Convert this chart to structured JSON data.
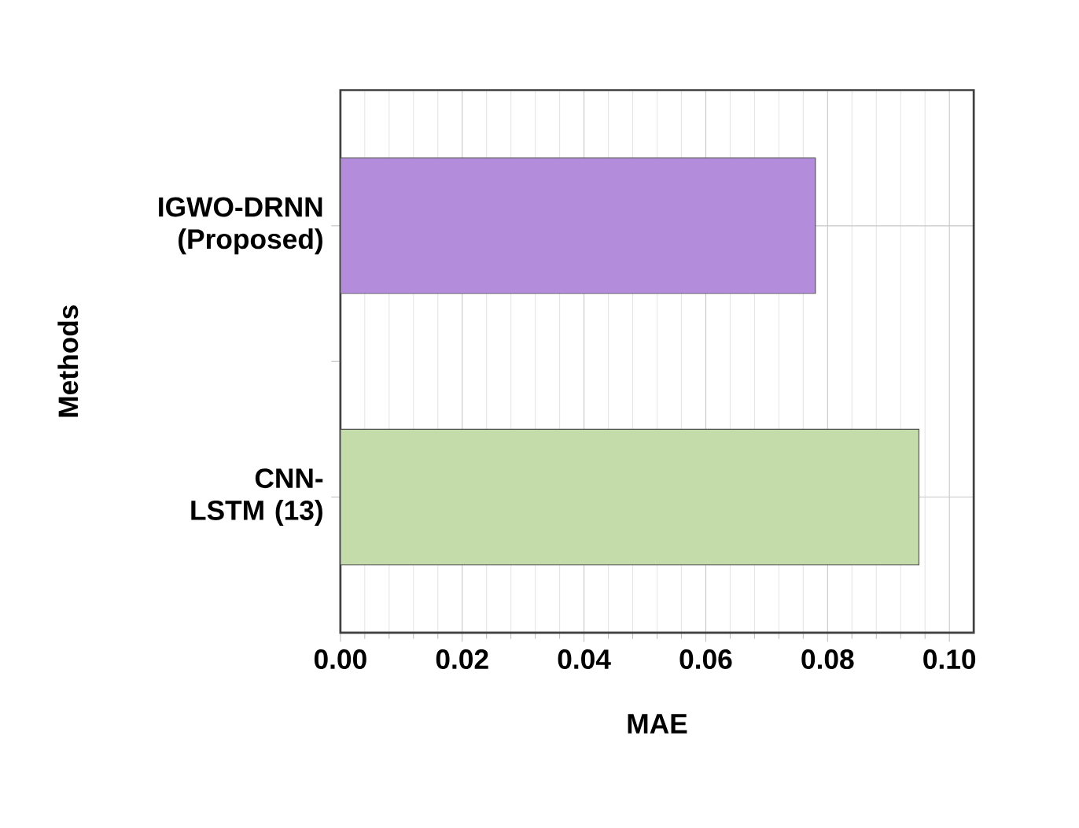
{
  "chart_data": {
    "type": "bar",
    "orientation": "horizontal",
    "xlabel": "MAE",
    "ylabel": "Methods",
    "categories": [
      "IGWO-DRNN (Proposed)",
      "CNN-LSTM (13)"
    ],
    "values": [
      0.078,
      0.095
    ],
    "colors": [
      "#b48cdc",
      "#c4dcaa"
    ],
    "xlim": [
      0,
      0.104
    ],
    "xticks": [
      {
        "value": 0,
        "label": "0.00"
      },
      {
        "value": 0.02,
        "label": "0.02"
      },
      {
        "value": 0.04,
        "label": "0.04"
      },
      {
        "value": 0.06,
        "label": "0.06"
      },
      {
        "value": 0.08,
        "label": "0.08"
      },
      {
        "value": 0.1,
        "label": "0.10"
      }
    ],
    "grid": true
  }
}
